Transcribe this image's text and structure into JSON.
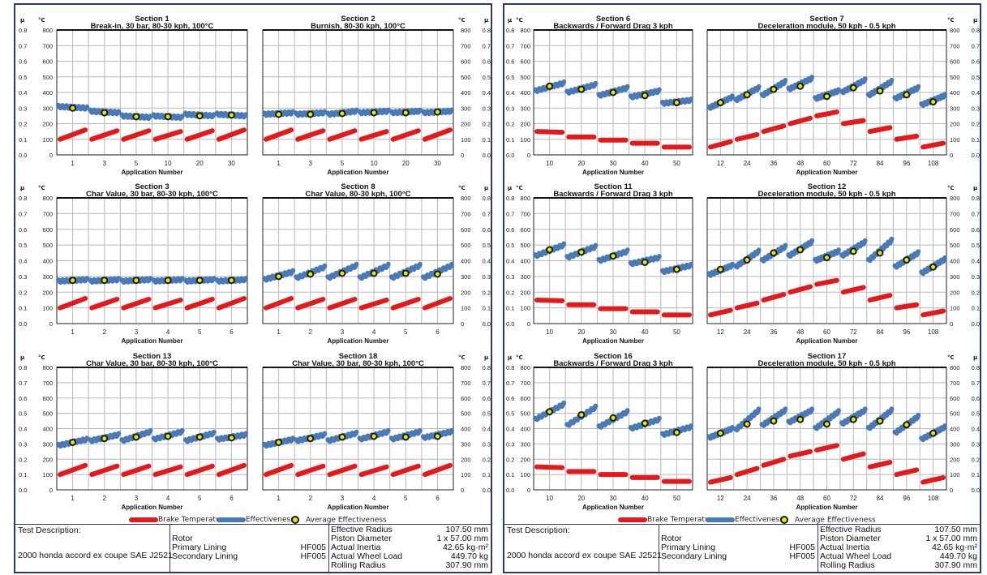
{
  "axis_symbols": {
    "mu": "μ",
    "degc": "°C"
  },
  "mu_ticks": [
    "0.0",
    "0.1",
    "0.2",
    "0.3",
    "0.4",
    "0.5",
    "0.6",
    "0.7",
    "0.8"
  ],
  "temp_ticks": [
    "0",
    "100",
    "200",
    "300",
    "400",
    "500",
    "600",
    "700",
    "800"
  ],
  "colors": {
    "brake_temperature": "#e31a1c",
    "effectiveness": "#4a7ab5",
    "average_marker_fill": "#e8e800",
    "frame": "#2b3b6b",
    "grid": "#b8b8b8"
  },
  "legend": {
    "brake": "Brake Temperature",
    "eff": "Effectiveness",
    "avg": "Average Effectiveness"
  },
  "info_table": {
    "test_description_label": "Test Description:",
    "test_description": "2000 honda accord ex coupe SAE J2521",
    "components": [
      {
        "label": "Rotor",
        "value": ""
      },
      {
        "label": "Primary Lining",
        "value": "HF005"
      },
      {
        "label": "Secondary Lining",
        "value": "HF005"
      }
    ],
    "specs": [
      {
        "label": "Effective Radius",
        "value": "107.50 mm"
      },
      {
        "label": "Piston Diameter",
        "value": "1 x 57.00 mm"
      },
      {
        "label": "Actual Inertia",
        "value": "42.65 kg·m²"
      },
      {
        "label": "Actual Wheel Load",
        "value": "449.70 kg"
      },
      {
        "label": "Rolling Radius",
        "value": "307.90 mm"
      }
    ]
  },
  "chart_data": [
    {
      "type": "line",
      "panel": "left",
      "row": 0,
      "col": 0,
      "title": "Section 1",
      "subtitle": "Break-in, 30 bar, 80-30 kph, 100°C",
      "xlabel": "Application Number",
      "x_tick_labels": [
        "1",
        "3",
        "5",
        "10",
        "20",
        "30"
      ],
      "ylim_mu": [
        0,
        0.8
      ],
      "ylim_temp": [
        0,
        800
      ],
      "grid": true,
      "effectiveness_segments": [
        [
          0.31,
          0.3
        ],
        [
          0.28,
          0.27
        ],
        [
          0.25,
          0.24
        ],
        [
          0.25,
          0.24
        ],
        [
          0.26,
          0.25
        ],
        [
          0.26,
          0.25
        ]
      ],
      "average_effectiveness": [
        0.3,
        0.27,
        0.245,
        0.245,
        0.25,
        0.255
      ],
      "brake_temperature_segments": [
        [
          100,
          160
        ],
        [
          100,
          155
        ],
        [
          100,
          155
        ],
        [
          100,
          150
        ],
        [
          100,
          155
        ],
        [
          100,
          160
        ]
      ]
    },
    {
      "type": "line",
      "panel": "left",
      "row": 0,
      "col": 1,
      "title": "Section 2",
      "subtitle": "Burnish, 80-30 kph, 100°C",
      "xlabel": "Application Number",
      "x_tick_labels": [
        "1",
        "3",
        "5",
        "10",
        "20",
        "30"
      ],
      "ylim_mu": [
        0,
        0.8
      ],
      "ylim_temp": [
        0,
        800
      ],
      "grid": true,
      "effectiveness_segments": [
        [
          0.26,
          0.27
        ],
        [
          0.26,
          0.27
        ],
        [
          0.26,
          0.28
        ],
        [
          0.27,
          0.28
        ],
        [
          0.27,
          0.28
        ],
        [
          0.27,
          0.28
        ]
      ],
      "average_effectiveness": [
        0.26,
        0.26,
        0.265,
        0.27,
        0.27,
        0.275
      ],
      "brake_temperature_segments": [
        [
          100,
          160
        ],
        [
          100,
          155
        ],
        [
          100,
          155
        ],
        [
          100,
          150
        ],
        [
          100,
          155
        ],
        [
          100,
          160
        ]
      ]
    },
    {
      "type": "line",
      "panel": "left",
      "row": 1,
      "col": 0,
      "title": "Section 3",
      "subtitle": "Char Value, 30 bar, 80-30 kph, 100°C",
      "xlabel": "Application Number",
      "x_tick_labels": [
        "1",
        "2",
        "3",
        "4",
        "5",
        "6"
      ],
      "ylim_mu": [
        0,
        0.8
      ],
      "ylim_temp": [
        0,
        800
      ],
      "grid": true,
      "effectiveness_segments": [
        [
          0.27,
          0.28
        ],
        [
          0.27,
          0.28
        ],
        [
          0.27,
          0.28
        ],
        [
          0.27,
          0.28
        ],
        [
          0.27,
          0.28
        ],
        [
          0.27,
          0.28
        ]
      ],
      "average_effectiveness": [
        0.275,
        0.275,
        0.275,
        0.275,
        0.275,
        0.275
      ],
      "brake_temperature_segments": [
        [
          100,
          160
        ],
        [
          100,
          155
        ],
        [
          100,
          155
        ],
        [
          100,
          150
        ],
        [
          100,
          155
        ],
        [
          100,
          160
        ]
      ]
    },
    {
      "type": "line",
      "panel": "left",
      "row": 1,
      "col": 1,
      "title": "Section 8",
      "subtitle": "Char Value, 80-30 kph, 100°C",
      "xlabel": "Application Number",
      "x_tick_labels": [
        "1",
        "2",
        "3",
        "4",
        "5",
        "6"
      ],
      "ylim_mu": [
        0,
        0.8
      ],
      "ylim_temp": [
        0,
        800
      ],
      "grid": true,
      "effectiveness_segments": [
        [
          0.28,
          0.33
        ],
        [
          0.29,
          0.36
        ],
        [
          0.29,
          0.37
        ],
        [
          0.29,
          0.37
        ],
        [
          0.29,
          0.37
        ],
        [
          0.29,
          0.37
        ]
      ],
      "average_effectiveness": [
        0.3,
        0.315,
        0.32,
        0.32,
        0.32,
        0.315
      ],
      "brake_temperature_segments": [
        [
          100,
          160
        ],
        [
          100,
          155
        ],
        [
          100,
          155
        ],
        [
          100,
          150
        ],
        [
          100,
          155
        ],
        [
          100,
          160
        ]
      ]
    },
    {
      "type": "line",
      "panel": "left",
      "row": 2,
      "col": 0,
      "title": "Section 13",
      "subtitle": "Char Value, 30 bar, 80-30 kph, 100°C",
      "xlabel": "Application Number",
      "x_tick_labels": [
        "1",
        "2",
        "3",
        "4",
        "5",
        "6"
      ],
      "ylim_mu": [
        0,
        0.8
      ],
      "ylim_temp": [
        0,
        800
      ],
      "grid": true,
      "effectiveness_segments": [
        [
          0.29,
          0.33
        ],
        [
          0.32,
          0.36
        ],
        [
          0.32,
          0.38
        ],
        [
          0.33,
          0.38
        ],
        [
          0.32,
          0.37
        ],
        [
          0.33,
          0.36
        ]
      ],
      "average_effectiveness": [
        0.31,
        0.335,
        0.345,
        0.35,
        0.345,
        0.34
      ],
      "brake_temperature_segments": [
        [
          100,
          160
        ],
        [
          100,
          155
        ],
        [
          100,
          155
        ],
        [
          100,
          150
        ],
        [
          100,
          155
        ],
        [
          100,
          160
        ]
      ]
    },
    {
      "type": "line",
      "panel": "left",
      "row": 2,
      "col": 1,
      "title": "Section 18",
      "subtitle": "Char Value, 30 bar, 80-30 kph, 100°C",
      "xlabel": "Application Number",
      "x_tick_labels": [
        "1",
        "2",
        "3",
        "4",
        "5",
        "6"
      ],
      "ylim_mu": [
        0,
        0.8
      ],
      "ylim_temp": [
        0,
        800
      ],
      "grid": true,
      "effectiveness_segments": [
        [
          0.29,
          0.33
        ],
        [
          0.32,
          0.36
        ],
        [
          0.32,
          0.37
        ],
        [
          0.33,
          0.38
        ],
        [
          0.33,
          0.38
        ],
        [
          0.34,
          0.38
        ]
      ],
      "average_effectiveness": [
        0.31,
        0.335,
        0.345,
        0.35,
        0.345,
        0.35
      ],
      "brake_temperature_segments": [
        [
          100,
          160
        ],
        [
          100,
          155
        ],
        [
          100,
          155
        ],
        [
          100,
          150
        ],
        [
          100,
          155
        ],
        [
          100,
          160
        ]
      ]
    },
    {
      "type": "line",
      "panel": "right",
      "row": 0,
      "col": 0,
      "title": "Section 6",
      "subtitle": "Backwards / Forward Drag 3 kph",
      "xlabel": "Application Number",
      "x_tick_labels": [
        "10",
        "20",
        "30",
        "40",
        "50"
      ],
      "ylim_mu": [
        0,
        0.8
      ],
      "ylim_temp": [
        0,
        800
      ],
      "grid": true,
      "effectiveness_segments": [
        [
          0.41,
          0.46
        ],
        [
          0.4,
          0.45
        ],
        [
          0.38,
          0.43
        ],
        [
          0.37,
          0.41
        ],
        [
          0.33,
          0.35
        ]
      ],
      "average_effectiveness": [
        0.44,
        0.42,
        0.4,
        0.38,
        0.335
      ],
      "brake_temperature_segments": [
        [
          150,
          145
        ],
        [
          115,
          115
        ],
        [
          95,
          95
        ],
        [
          75,
          75
        ],
        [
          50,
          50
        ]
      ]
    },
    {
      "type": "line",
      "panel": "right",
      "row": 0,
      "col": 1,
      "title": "Section 7",
      "subtitle": "Deceleration module, 50 kph - 0.5 kph",
      "xlabel": "Application Number",
      "x_tick_labels": [
        "12",
        "24",
        "36",
        "48",
        "60",
        "72",
        "84",
        "96",
        "108"
      ],
      "ylim_mu": [
        0,
        0.8
      ],
      "ylim_temp": [
        0,
        800
      ],
      "grid": true,
      "effectiveness_segments": [
        [
          0.3,
          0.37
        ],
        [
          0.35,
          0.43
        ],
        [
          0.38,
          0.47
        ],
        [
          0.42,
          0.49
        ],
        [
          0.36,
          0.41
        ],
        [
          0.4,
          0.48
        ],
        [
          0.38,
          0.47
        ],
        [
          0.36,
          0.43
        ],
        [
          0.32,
          0.38
        ]
      ],
      "average_effectiveness": [
        0.335,
        0.385,
        0.42,
        0.44,
        0.375,
        0.43,
        0.41,
        0.385,
        0.34
      ],
      "brake_temperature_segments": [
        [
          50,
          85
        ],
        [
          100,
          130
        ],
        [
          150,
          185
        ],
        [
          200,
          235
        ],
        [
          250,
          275
        ],
        [
          200,
          220
        ],
        [
          150,
          175
        ],
        [
          100,
          120
        ],
        [
          50,
          75
        ]
      ]
    },
    {
      "type": "line",
      "panel": "right",
      "row": 1,
      "col": 0,
      "title": "Section 11",
      "subtitle": "Backwards / Forward Drag 3 kph",
      "xlabel": "Application Number",
      "x_tick_labels": [
        "10",
        "20",
        "30",
        "40",
        "50"
      ],
      "ylim_mu": [
        0,
        0.8
      ],
      "ylim_temp": [
        0,
        800
      ],
      "grid": true,
      "effectiveness_segments": [
        [
          0.43,
          0.5
        ],
        [
          0.42,
          0.49
        ],
        [
          0.4,
          0.46
        ],
        [
          0.38,
          0.42
        ],
        [
          0.33,
          0.37
        ]
      ],
      "average_effectiveness": [
        0.47,
        0.455,
        0.43,
        0.39,
        0.345
      ],
      "brake_temperature_segments": [
        [
          150,
          145
        ],
        [
          120,
          120
        ],
        [
          95,
          95
        ],
        [
          75,
          75
        ],
        [
          55,
          55
        ]
      ]
    },
    {
      "type": "line",
      "panel": "right",
      "row": 1,
      "col": 1,
      "title": "Section 12",
      "subtitle": "Deceleration module, 50 kph - 0.5 kph",
      "xlabel": "Application Number",
      "x_tick_labels": [
        "12",
        "24",
        "36",
        "48",
        "60",
        "72",
        "84",
        "96",
        "108"
      ],
      "ylim_mu": [
        0,
        0.8
      ],
      "ylim_temp": [
        0,
        800
      ],
      "grid": true,
      "effectiveness_segments": [
        [
          0.31,
          0.37
        ],
        [
          0.36,
          0.46
        ],
        [
          0.4,
          0.49
        ],
        [
          0.43,
          0.52
        ],
        [
          0.4,
          0.46
        ],
        [
          0.43,
          0.52
        ],
        [
          0.4,
          0.53
        ],
        [
          0.36,
          0.45
        ],
        [
          0.32,
          0.41
        ]
      ],
      "average_effectiveness": [
        0.345,
        0.405,
        0.45,
        0.47,
        0.42,
        0.46,
        0.45,
        0.405,
        0.36
      ],
      "brake_temperature_segments": [
        [
          55,
          85
        ],
        [
          100,
          130
        ],
        [
          150,
          185
        ],
        [
          200,
          235
        ],
        [
          250,
          275
        ],
        [
          200,
          230
        ],
        [
          150,
          180
        ],
        [
          100,
          120
        ],
        [
          55,
          80
        ]
      ]
    },
    {
      "type": "line",
      "panel": "right",
      "row": 2,
      "col": 0,
      "title": "Section 16",
      "subtitle": "Backwards / Forward Drag 3 kph",
      "xlabel": "Application Number",
      "x_tick_labels": [
        "10",
        "20",
        "30",
        "40",
        "50"
      ],
      "ylim_mu": [
        0,
        0.8
      ],
      "ylim_temp": [
        0,
        800
      ],
      "grid": true,
      "effectiveness_segments": [
        [
          0.46,
          0.56
        ],
        [
          0.42,
          0.54
        ],
        [
          0.41,
          0.51
        ],
        [
          0.4,
          0.46
        ],
        [
          0.36,
          0.41
        ]
      ],
      "average_effectiveness": [
        0.51,
        0.49,
        0.47,
        0.435,
        0.375
      ],
      "brake_temperature_segments": [
        [
          150,
          145
        ],
        [
          120,
          120
        ],
        [
          100,
          100
        ],
        [
          80,
          80
        ],
        [
          55,
          55
        ]
      ]
    },
    {
      "type": "line",
      "panel": "right",
      "row": 2,
      "col": 1,
      "title": "Section 17",
      "subtitle": "Deceleration module, 50 kph - 0.5 kph",
      "xlabel": "Application Number",
      "x_tick_labels": [
        "12",
        "24",
        "36",
        "48",
        "60",
        "72",
        "84",
        "96",
        "108"
      ],
      "ylim_mu": [
        0,
        0.8
      ],
      "ylim_temp": [
        0,
        800
      ],
      "grid": true,
      "effectiveness_segments": [
        [
          0.34,
          0.4
        ],
        [
          0.39,
          0.52
        ],
        [
          0.42,
          0.52
        ],
        [
          0.44,
          0.52
        ],
        [
          0.4,
          0.51
        ],
        [
          0.43,
          0.52
        ],
        [
          0.4,
          0.52
        ],
        [
          0.37,
          0.48
        ],
        [
          0.33,
          0.41
        ]
      ],
      "average_effectiveness": [
        0.37,
        0.43,
        0.45,
        0.46,
        0.43,
        0.46,
        0.45,
        0.425,
        0.37
      ],
      "brake_temperature_segments": [
        [
          50,
          80
        ],
        [
          100,
          140
        ],
        [
          160,
          200
        ],
        [
          220,
          250
        ],
        [
          260,
          290
        ],
        [
          200,
          235
        ],
        [
          150,
          180
        ],
        [
          100,
          130
        ],
        [
          50,
          80
        ]
      ]
    }
  ]
}
